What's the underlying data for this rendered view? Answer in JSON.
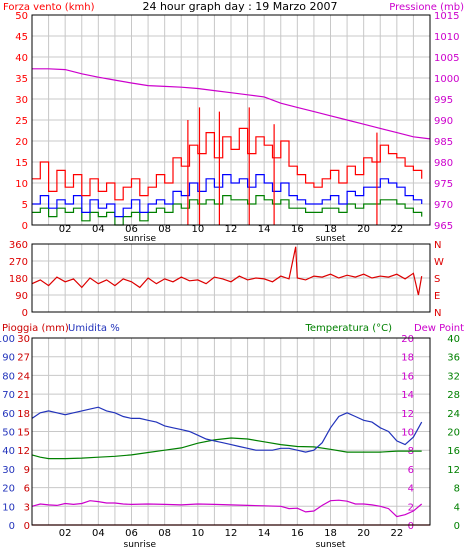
{
  "title": "24 hour graph day : 19 Marzo 2007",
  "colors": {
    "wind": "#ff0000",
    "gust_blue": "#0000ff",
    "avg_green": "#008000",
    "pressure": "#cc00cc",
    "direction": "#dd0000",
    "humidity": "#2233bb",
    "temperature": "#008000",
    "dewpoint": "#cc00cc",
    "rain": "#cc0000",
    "grid": "#c8c8c8",
    "frame": "#000000"
  },
  "x_ticks": [
    "02",
    "04",
    "06",
    "08",
    "10",
    "12",
    "14",
    "16",
    "18",
    "20",
    "22"
  ],
  "sunrise_label": "sunrise",
  "sunset_label": "sunset",
  "chart_data": [
    {
      "type": "line",
      "name": "wind-pressure",
      "left_label": "Forza vento (kmh)",
      "right_label": "Pressione (mb)",
      "left_ticks": [
        "0",
        "5",
        "10",
        "15",
        "20",
        "25",
        "30",
        "35",
        "40",
        "45",
        "50"
      ],
      "right_ticks": [
        "965",
        "970",
        "975",
        "980",
        "985",
        "990",
        "995",
        "1000",
        "1005",
        "1010",
        "1015"
      ],
      "ylim_left": [
        0,
        50
      ],
      "ylim_right": [
        965,
        1015
      ],
      "xlim": [
        0,
        24
      ],
      "wind_gust": [
        [
          0,
          11
        ],
        [
          0.5,
          15
        ],
        [
          1,
          8
        ],
        [
          1.5,
          13
        ],
        [
          2,
          9
        ],
        [
          2.5,
          12
        ],
        [
          3,
          7
        ],
        [
          3.5,
          11
        ],
        [
          4,
          8
        ],
        [
          4.5,
          10
        ],
        [
          5,
          6
        ],
        [
          5.5,
          9
        ],
        [
          6,
          11
        ],
        [
          6.5,
          7
        ],
        [
          7,
          9
        ],
        [
          7.5,
          12
        ],
        [
          8,
          10
        ],
        [
          8.5,
          16
        ],
        [
          9,
          14
        ],
        [
          9.5,
          19
        ],
        [
          10,
          17
        ],
        [
          10.5,
          22
        ],
        [
          11,
          16
        ],
        [
          11.5,
          21
        ],
        [
          12,
          18
        ],
        [
          12.5,
          23
        ],
        [
          13,
          17
        ],
        [
          13.5,
          21
        ],
        [
          14,
          19
        ],
        [
          14.5,
          16
        ],
        [
          15,
          20
        ],
        [
          15.5,
          14
        ],
        [
          16,
          12
        ],
        [
          16.5,
          10
        ],
        [
          17,
          9
        ],
        [
          17.5,
          11
        ],
        [
          18,
          13
        ],
        [
          18.5,
          10
        ],
        [
          19,
          14
        ],
        [
          19.5,
          12
        ],
        [
          20,
          16
        ],
        [
          20.5,
          15
        ],
        [
          21,
          19
        ],
        [
          21.5,
          17
        ],
        [
          22,
          16
        ],
        [
          22.5,
          14
        ],
        [
          23,
          13
        ],
        [
          23.5,
          11
        ]
      ],
      "wind_gust_peaks": [
        [
          9.4,
          25
        ],
        [
          10.1,
          28
        ],
        [
          11.3,
          27
        ],
        [
          13.1,
          28
        ],
        [
          14.6,
          24
        ],
        [
          20.8,
          22
        ]
      ],
      "wind_speed": [
        [
          0,
          5
        ],
        [
          0.5,
          7
        ],
        [
          1,
          4
        ],
        [
          1.5,
          6
        ],
        [
          2,
          5
        ],
        [
          2.5,
          7
        ],
        [
          3,
          3
        ],
        [
          3.5,
          6
        ],
        [
          4,
          4
        ],
        [
          4.5,
          5
        ],
        [
          5,
          2
        ],
        [
          5.5,
          4
        ],
        [
          6,
          6
        ],
        [
          6.5,
          3
        ],
        [
          7,
          5
        ],
        [
          7.5,
          6
        ],
        [
          8,
          5
        ],
        [
          8.5,
          8
        ],
        [
          9,
          7
        ],
        [
          9.5,
          10
        ],
        [
          10,
          8
        ],
        [
          10.5,
          11
        ],
        [
          11,
          9
        ],
        [
          11.5,
          12
        ],
        [
          12,
          10
        ],
        [
          12.5,
          11
        ],
        [
          13,
          9
        ],
        [
          13.5,
          12
        ],
        [
          14,
          10
        ],
        [
          14.5,
          8
        ],
        [
          15,
          10
        ],
        [
          15.5,
          7
        ],
        [
          16,
          6
        ],
        [
          16.5,
          5
        ],
        [
          17,
          5
        ],
        [
          17.5,
          6
        ],
        [
          18,
          7
        ],
        [
          18.5,
          5
        ],
        [
          19,
          8
        ],
        [
          19.5,
          7
        ],
        [
          20,
          9
        ],
        [
          20.5,
          9
        ],
        [
          21,
          11
        ],
        [
          21.5,
          10
        ],
        [
          22,
          9
        ],
        [
          22.5,
          7
        ],
        [
          23,
          6
        ],
        [
          23.5,
          5
        ]
      ],
      "wind_avg": [
        [
          0,
          3
        ],
        [
          0.5,
          4
        ],
        [
          1,
          2
        ],
        [
          1.5,
          4
        ],
        [
          2,
          3
        ],
        [
          2.5,
          4
        ],
        [
          3,
          1
        ],
        [
          3.5,
          3
        ],
        [
          4,
          2
        ],
        [
          4.5,
          3
        ],
        [
          5,
          0
        ],
        [
          5.5,
          2
        ],
        [
          6,
          3
        ],
        [
          6.5,
          1
        ],
        [
          7,
          3
        ],
        [
          7.5,
          4
        ],
        [
          8,
          3
        ],
        [
          8.5,
          5
        ],
        [
          9,
          4
        ],
        [
          9.5,
          6
        ],
        [
          10,
          5
        ],
        [
          10.5,
          6
        ],
        [
          11,
          5
        ],
        [
          11.5,
          7
        ],
        [
          12,
          6
        ],
        [
          12.5,
          6
        ],
        [
          13,
          5
        ],
        [
          13.5,
          7
        ],
        [
          14,
          6
        ],
        [
          14.5,
          5
        ],
        [
          15,
          6
        ],
        [
          15.5,
          4
        ],
        [
          16,
          4
        ],
        [
          16.5,
          3
        ],
        [
          17,
          3
        ],
        [
          17.5,
          4
        ],
        [
          18,
          4
        ],
        [
          18.5,
          3
        ],
        [
          19,
          5
        ],
        [
          19.5,
          4
        ],
        [
          20,
          5
        ],
        [
          20.5,
          5
        ],
        [
          21,
          6
        ],
        [
          21.5,
          6
        ],
        [
          22,
          5
        ],
        [
          22.5,
          4
        ],
        [
          23,
          3
        ],
        [
          23.5,
          2
        ]
      ],
      "pressure": [
        [
          0,
          1002.2
        ],
        [
          1,
          1002.2
        ],
        [
          2,
          1002
        ],
        [
          3,
          1001
        ],
        [
          4,
          1000.2
        ],
        [
          5,
          999.5
        ],
        [
          6,
          998.8
        ],
        [
          7,
          998.2
        ],
        [
          8,
          998
        ],
        [
          9,
          997.8
        ],
        [
          10,
          997.5
        ],
        [
          11,
          997
        ],
        [
          12,
          996.5
        ],
        [
          13,
          996
        ],
        [
          14,
          995.5
        ],
        [
          15,
          994
        ],
        [
          16,
          993
        ],
        [
          17,
          992
        ],
        [
          18,
          991
        ],
        [
          19,
          990
        ],
        [
          20,
          989
        ],
        [
          21,
          988
        ],
        [
          22,
          987
        ],
        [
          23,
          986
        ],
        [
          24,
          985.5
        ]
      ]
    },
    {
      "type": "line",
      "name": "wind-direction",
      "left_ticks": [
        "0",
        "90",
        "180",
        "270",
        "360"
      ],
      "right_ticks": [
        "N",
        "E",
        "S",
        "W",
        "N"
      ],
      "ylim": [
        0,
        360
      ],
      "xlim": [
        0,
        24
      ],
      "direction": [
        [
          0,
          150
        ],
        [
          0.5,
          170
        ],
        [
          1,
          140
        ],
        [
          1.5,
          185
        ],
        [
          2,
          160
        ],
        [
          2.5,
          175
        ],
        [
          3,
          130
        ],
        [
          3.5,
          180
        ],
        [
          4,
          150
        ],
        [
          4.5,
          170
        ],
        [
          5,
          140
        ],
        [
          5.5,
          175
        ],
        [
          6,
          160
        ],
        [
          6.5,
          130
        ],
        [
          7,
          180
        ],
        [
          7.5,
          150
        ],
        [
          8,
          175
        ],
        [
          8.5,
          160
        ],
        [
          9,
          185
        ],
        [
          9.5,
          165
        ],
        [
          10,
          170
        ],
        [
          10.5,
          150
        ],
        [
          11,
          185
        ],
        [
          11.5,
          175
        ],
        [
          12,
          160
        ],
        [
          12.5,
          190
        ],
        [
          13,
          170
        ],
        [
          13.5,
          180
        ],
        [
          14,
          175
        ],
        [
          14.5,
          160
        ],
        [
          15,
          190
        ],
        [
          15.5,
          175
        ],
        [
          15.9,
          345
        ],
        [
          16,
          180
        ],
        [
          16.5,
          170
        ],
        [
          17,
          190
        ],
        [
          17.5,
          185
        ],
        [
          18,
          200
        ],
        [
          18.5,
          180
        ],
        [
          19,
          195
        ],
        [
          19.5,
          185
        ],
        [
          20,
          200
        ],
        [
          20.5,
          180
        ],
        [
          21,
          190
        ],
        [
          21.5,
          185
        ],
        [
          22,
          200
        ],
        [
          22.5,
          175
        ],
        [
          23,
          205
        ],
        [
          23.3,
          90
        ],
        [
          23.5,
          190
        ]
      ]
    },
    {
      "type": "line",
      "name": "rain-humidity-temperature",
      "left_label_1": "Pioggia (mm)",
      "left_label_2": "Umidita %",
      "right_label_1": "Temperatura (°C)",
      "right_label_2": "Dew Point",
      "humidity_ticks": [
        "0",
        "10",
        "20",
        "30",
        "40",
        "50",
        "60",
        "70",
        "80",
        "90",
        "100"
      ],
      "rain_ticks": [
        "0",
        "3",
        "6",
        "9",
        "12",
        "15",
        "18",
        "21",
        "24",
        "27",
        "30"
      ],
      "temp_ticks_right": [
        "0",
        "4",
        "8",
        "12",
        "16",
        "20",
        "24",
        "28",
        "32",
        "36",
        "40"
      ],
      "temp_ticks_inner": [
        "0",
        "2",
        "4",
        "6",
        "8",
        "10",
        "12",
        "14",
        "16",
        "18",
        "20"
      ],
      "ylim_humidity": [
        0,
        100
      ],
      "ylim_rain": [
        0,
        30
      ],
      "ylim_temp": [
        0,
        40
      ],
      "xlim": [
        0,
        24
      ],
      "humidity": [
        [
          0,
          57
        ],
        [
          0.5,
          60
        ],
        [
          1,
          61
        ],
        [
          1.5,
          60
        ],
        [
          2,
          59
        ],
        [
          2.5,
          60
        ],
        [
          3,
          61
        ],
        [
          3.5,
          62
        ],
        [
          4,
          63
        ],
        [
          4.5,
          61
        ],
        [
          5,
          60
        ],
        [
          5.5,
          58
        ],
        [
          6,
          57
        ],
        [
          6.5,
          57
        ],
        [
          7,
          56
        ],
        [
          7.5,
          55
        ],
        [
          8,
          53
        ],
        [
          8.5,
          52
        ],
        [
          9,
          51
        ],
        [
          9.5,
          50
        ],
        [
          10,
          48
        ],
        [
          10.5,
          46
        ],
        [
          11,
          45
        ],
        [
          11.5,
          44
        ],
        [
          12,
          43
        ],
        [
          12.5,
          42
        ],
        [
          13,
          41
        ],
        [
          13.5,
          40
        ],
        [
          14,
          40
        ],
        [
          14.5,
          40
        ],
        [
          15,
          41
        ],
        [
          15.5,
          41
        ],
        [
          16,
          40
        ],
        [
          16.5,
          39
        ],
        [
          17,
          40
        ],
        [
          17.5,
          44
        ],
        [
          18,
          52
        ],
        [
          18.5,
          58
        ],
        [
          19,
          60
        ],
        [
          19.5,
          58
        ],
        [
          20,
          56
        ],
        [
          20.5,
          55
        ],
        [
          21,
          52
        ],
        [
          21.5,
          50
        ],
        [
          22,
          45
        ],
        [
          22.5,
          43
        ],
        [
          23,
          47
        ],
        [
          23.5,
          55
        ]
      ],
      "temperature": [
        [
          0,
          15
        ],
        [
          0.5,
          14.5
        ],
        [
          1,
          14.2
        ],
        [
          1.5,
          14.2
        ],
        [
          2,
          14.2
        ],
        [
          3,
          14.3
        ],
        [
          4,
          14.5
        ],
        [
          5,
          14.7
        ],
        [
          6,
          15
        ],
        [
          7,
          15.5
        ],
        [
          8,
          16
        ],
        [
          9,
          16.5
        ],
        [
          10,
          17.5
        ],
        [
          11,
          18.2
        ],
        [
          12,
          18.6
        ],
        [
          13,
          18.4
        ],
        [
          14,
          17.8
        ],
        [
          15,
          17.2
        ],
        [
          16,
          16.8
        ],
        [
          17,
          16.7
        ],
        [
          18,
          16.2
        ],
        [
          19,
          15.6
        ],
        [
          20,
          15.6
        ],
        [
          21,
          15.6
        ],
        [
          22,
          15.8
        ],
        [
          23,
          15.8
        ],
        [
          23.5,
          15.8
        ]
      ],
      "dewpoint": [
        [
          0,
          4
        ],
        [
          0.5,
          4.5
        ],
        [
          1,
          4.3
        ],
        [
          1.5,
          4.2
        ],
        [
          2,
          4.6
        ],
        [
          2.5,
          4.4
        ],
        [
          3,
          4.6
        ],
        [
          3.5,
          5.2
        ],
        [
          4,
          5
        ],
        [
          4.5,
          4.7
        ],
        [
          5,
          4.7
        ],
        [
          5.5,
          4.5
        ],
        [
          6,
          4.4
        ],
        [
          7,
          4.5
        ],
        [
          8,
          4.4
        ],
        [
          9,
          4.3
        ],
        [
          10,
          4.5
        ],
        [
          11,
          4.4
        ],
        [
          12,
          4.3
        ],
        [
          13,
          4.2
        ],
        [
          14,
          4.1
        ],
        [
          15,
          4
        ],
        [
          15.5,
          3.5
        ],
        [
          16,
          3.6
        ],
        [
          16.5,
          2.8
        ],
        [
          17,
          3
        ],
        [
          17.5,
          4.2
        ],
        [
          18,
          5.2
        ],
        [
          18.5,
          5.3
        ],
        [
          19,
          5.1
        ],
        [
          19.5,
          4.5
        ],
        [
          20,
          4.5
        ],
        [
          20.5,
          4.3
        ],
        [
          21,
          4
        ],
        [
          21.5,
          3.5
        ],
        [
          22,
          1.8
        ],
        [
          22.5,
          2.2
        ],
        [
          23,
          3
        ],
        [
          23.5,
          4.5
        ]
      ],
      "rain": [
        [
          0,
          0
        ],
        [
          24,
          0
        ]
      ]
    }
  ]
}
